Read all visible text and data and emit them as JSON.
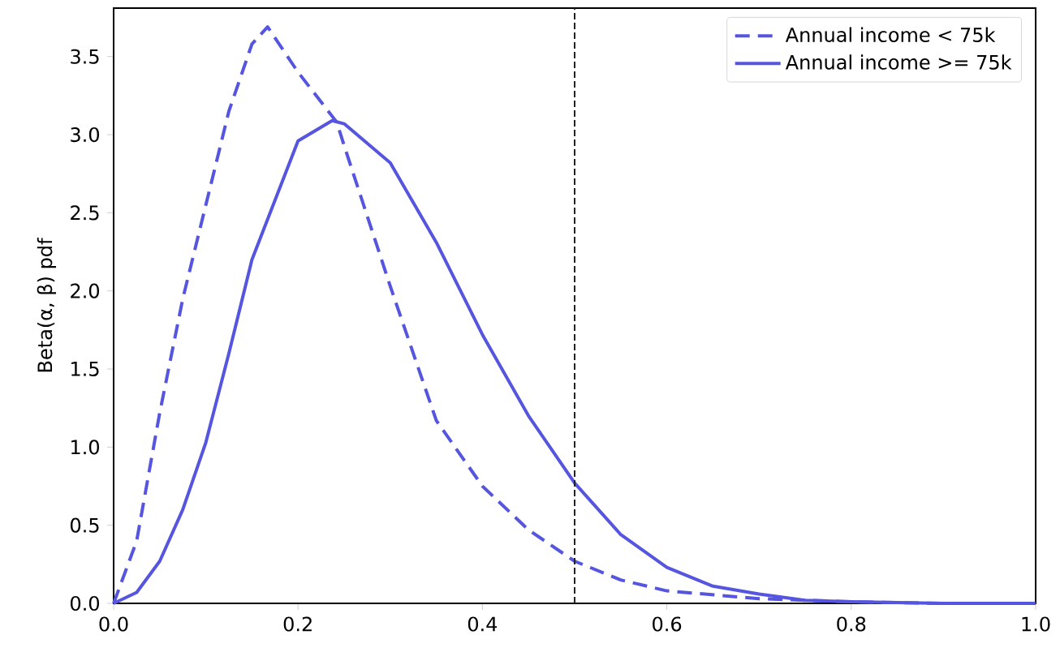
{
  "chart_data": {
    "type": "line",
    "ylabel": "Beta(α, β) pdf",
    "xlim": [
      0,
      1
    ],
    "ylim": [
      0,
      3.81
    ],
    "xticks": [
      {
        "value": 0,
        "label": "0.0"
      },
      {
        "value": 0.2,
        "label": "0.2"
      },
      {
        "value": 0.4,
        "label": "0.4"
      },
      {
        "value": 0.6,
        "label": "0.6"
      },
      {
        "value": 0.8,
        "label": "0.8"
      },
      {
        "value": 1,
        "label": "1.0"
      }
    ],
    "yticks": [
      {
        "value": 0,
        "label": "0.0"
      },
      {
        "value": 0.5,
        "label": "0.5"
      },
      {
        "value": 1,
        "label": "1.0"
      },
      {
        "value": 1.5,
        "label": "1.5"
      },
      {
        "value": 2,
        "label": "2.0"
      },
      {
        "value": 2.5,
        "label": "2.5"
      },
      {
        "value": 3,
        "label": "3.0"
      },
      {
        "value": 3.5,
        "label": "3.5"
      }
    ],
    "series": [
      {
        "name": "Annual income < 75k",
        "color": "#5555e0",
        "line_style": "dashed",
        "x": [
          0,
          0.025,
          0.05,
          0.075,
          0.1,
          0.125,
          0.15,
          0.167,
          0.2,
          0.242,
          0.25,
          0.3,
          0.35,
          0.4,
          0.45,
          0.5,
          0.55,
          0.6,
          0.7,
          0.8,
          0.9,
          1
        ],
        "values": [
          0,
          0.4,
          1.22,
          1.95,
          2.55,
          3.15,
          3.58,
          3.69,
          3.4,
          3.08,
          2.93,
          2.03,
          1.17,
          0.75,
          0.47,
          0.27,
          0.15,
          0.08,
          0.03,
          0.01,
          0,
          0
        ]
      },
      {
        "name": "Annual income >= 75k",
        "color": "#5555e0",
        "line_style": "solid",
        "x": [
          0,
          0.025,
          0.05,
          0.075,
          0.1,
          0.125,
          0.15,
          0.2,
          0.237,
          0.25,
          0.3,
          0.35,
          0.4,
          0.45,
          0.5,
          0.55,
          0.6,
          0.65,
          0.7,
          0.75,
          0.8,
          0.9,
          1
        ],
        "values": [
          0,
          0.07,
          0.27,
          0.6,
          1.03,
          1.6,
          2.2,
          2.96,
          3.09,
          3.07,
          2.82,
          2.31,
          1.72,
          1.2,
          0.77,
          0.44,
          0.23,
          0.11,
          0.06,
          0.02,
          0.01,
          0,
          0
        ]
      }
    ],
    "ref_lines": [
      {
        "axis": "x",
        "value": 0.5,
        "color": "#222222",
        "line_style": "dashed"
      }
    ],
    "legend": "top right",
    "grid": false
  }
}
